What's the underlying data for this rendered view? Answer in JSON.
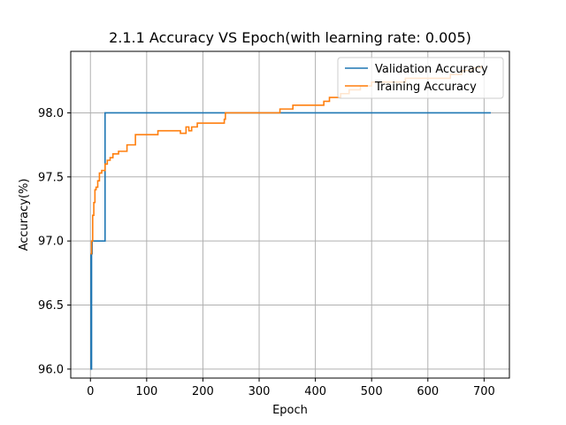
{
  "chart_data": {
    "type": "line",
    "title": "2.1.1 Accuracy VS Epoch(with learning rate: 0.005)",
    "xlabel": "Epoch",
    "ylabel": "Accuracy(%)",
    "xlim": [
      -35,
      745
    ],
    "ylim": [
      95.93,
      98.48
    ],
    "xticks": [
      0,
      100,
      200,
      300,
      400,
      500,
      600,
      700
    ],
    "yticks": [
      96.0,
      96.5,
      97.0,
      97.5,
      98.0
    ],
    "ytick_labels": [
      "96.0",
      "96.5",
      "97.0",
      "97.5",
      "98.0"
    ],
    "grid": true,
    "legend_position": "top-right",
    "series": [
      {
        "name": "Validation Accuracy",
        "color": "#1f77b4",
        "step": true,
        "x": [
          0,
          1,
          2,
          3,
          26,
          712
        ],
        "y": [
          96.9,
          96.0,
          96.9,
          97.0,
          98.0,
          98.0
        ]
      },
      {
        "name": "Training Accuracy",
        "color": "#ff7f0e",
        "step": true,
        "x": [
          0,
          2,
          4,
          6,
          8,
          10,
          13,
          16,
          20,
          26,
          30,
          35,
          40,
          50,
          55,
          65,
          80,
          120,
          150,
          160,
          170,
          175,
          180,
          190,
          220,
          238,
          240,
          260,
          300,
          337,
          360,
          400,
          415,
          425,
          445,
          460,
          480,
          500,
          520,
          560,
          600,
          640,
          660,
          680,
          695
        ],
        "y": [
          96.9,
          97.0,
          97.2,
          97.3,
          97.4,
          97.42,
          97.47,
          97.53,
          97.55,
          97.6,
          97.63,
          97.65,
          97.68,
          97.7,
          97.7,
          97.75,
          97.83,
          97.86,
          97.86,
          97.84,
          97.89,
          97.86,
          97.89,
          97.92,
          97.92,
          97.95,
          98.0,
          98.0,
          98.0,
          98.03,
          98.06,
          98.06,
          98.09,
          98.12,
          98.15,
          98.18,
          98.21,
          98.24,
          98.24,
          98.27,
          98.27,
          98.3,
          98.33,
          98.35,
          98.37
        ]
      }
    ]
  }
}
